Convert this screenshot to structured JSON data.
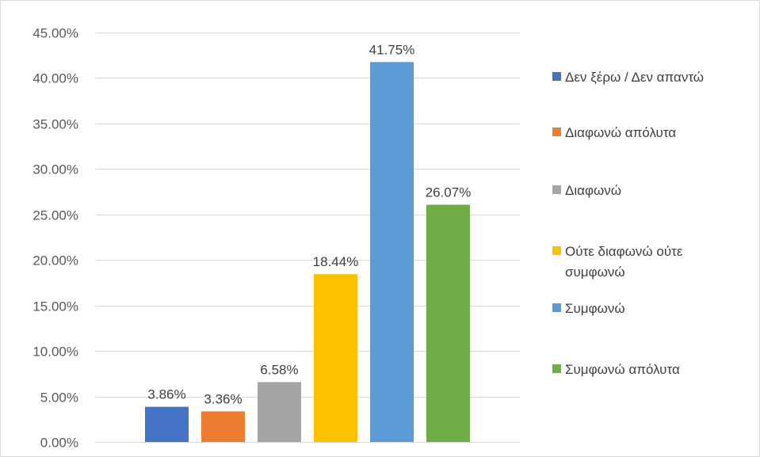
{
  "chart_data": {
    "type": "bar",
    "title": "",
    "xlabel": "",
    "ylabel": "",
    "categories": [
      "Δεν ξέρω / Δεν απαντώ",
      "Διαφωνώ απόλυτα",
      "Διαφωνώ",
      "Ούτε διαφωνώ ούτε συμφωνώ",
      "Συμφωνώ",
      "Συμφωνώ απόλυτα"
    ],
    "values": [
      3.86,
      3.36,
      6.58,
      18.44,
      41.75,
      26.07
    ],
    "value_labels": [
      "3.86%",
      "3.36%",
      "6.58%",
      "18.44%",
      "41.75%",
      "26.07%"
    ],
    "colors": [
      "#4472C4",
      "#ED7D31",
      "#A5A5A5",
      "#FFC000",
      "#5B9BD5",
      "#70AD47"
    ],
    "ylim": [
      0,
      45
    ],
    "yticks": [
      0,
      5,
      10,
      15,
      20,
      25,
      30,
      35,
      40,
      45
    ],
    "ytick_labels": [
      "0.00%",
      "5.00%",
      "10.00%",
      "15.00%",
      "20.00%",
      "25.00%",
      "30.00%",
      "35.00%",
      "40.00%",
      "45.00%"
    ],
    "grid": true,
    "legend": {
      "position": "right",
      "lines": [
        [
          "Δεν ξέρω / Δεν απαντώ"
        ],
        [
          "Διαφωνώ απόλυτα"
        ],
        [
          "Διαφωνώ"
        ],
        [
          "Ούτε διαφωνώ ούτε",
          "συμφωνώ"
        ],
        [
          "Συμφωνώ"
        ],
        [
          "Συμφωνώ απόλυτα"
        ]
      ]
    }
  }
}
